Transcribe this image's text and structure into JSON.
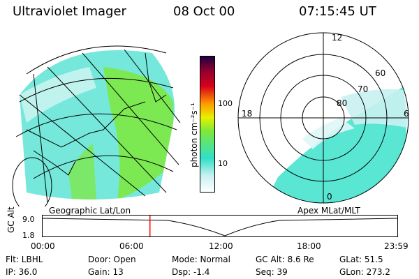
{
  "header": {
    "title": "Ultraviolet Imager",
    "date": "08 Oct 00",
    "time": "07:15:45 UT"
  },
  "colorbar": {
    "unit": "photon cm⁻²s⁻¹",
    "ticks": [
      "100",
      "10"
    ]
  },
  "left_panel": {
    "caption": "Geographic Lat/Lon"
  },
  "right_panel": {
    "caption": "Apex MLat/MLT",
    "lat_labels": [
      "80",
      "70",
      "60"
    ],
    "mlt_labels": [
      "12",
      "18",
      "6",
      "0"
    ]
  },
  "timeline": {
    "axis_label": "GC Alt",
    "y_ticks": [
      "9.0",
      "1.8"
    ],
    "x_ticks": [
      "00:00",
      "06:00",
      "12:00",
      "18:00",
      "23:59"
    ],
    "current_time_fraction": 0.3026
  },
  "info": {
    "filter": "Flt: LBHL",
    "ip": "IP: 36.0",
    "door": "Door: Open",
    "gain": "Gain: 13",
    "mode": "Mode: Normal",
    "dsp": "Dsp:  -1.4",
    "gc_alt": "GC Alt: 8.6 Re",
    "seq": "Seq: 39",
    "glat": "GLat:  51.5",
    "glon": "GLon: 273.2"
  },
  "colors": {
    "cyan": "#2fe0c8",
    "green": "#7ee83a",
    "pale": "#bfeff0",
    "marker": "#ff0000"
  }
}
